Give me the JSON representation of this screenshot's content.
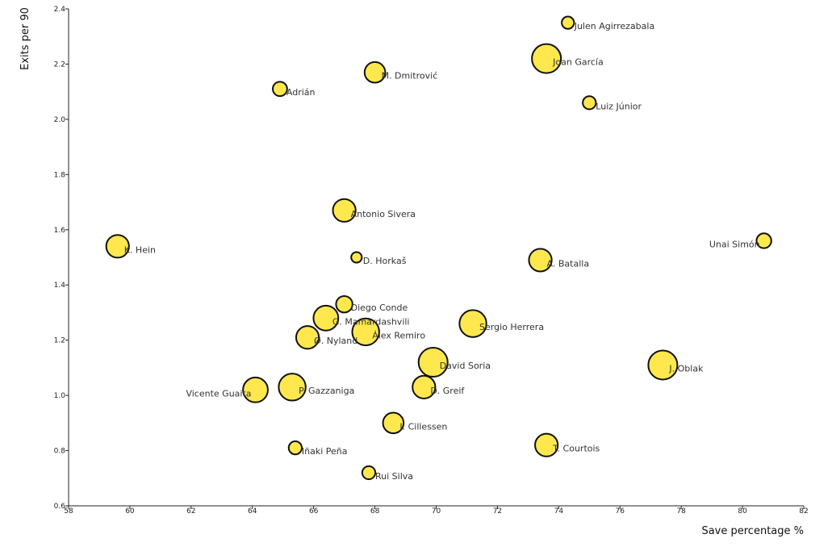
{
  "chart_data": {
    "type": "scatter",
    "xlabel": "Save percentage %",
    "ylabel": "Exits per 90",
    "xlim": [
      58,
      82
    ],
    "ylim": [
      0.6,
      2.4
    ],
    "xticks": [
      58,
      60,
      62,
      64,
      66,
      68,
      70,
      72,
      74,
      76,
      78,
      80,
      82
    ],
    "yticks": [
      0.6,
      0.8,
      1.0,
      1.2,
      1.4,
      1.6,
      1.8,
      2.0,
      2.2,
      2.4
    ],
    "x_tick_labels": [
      "58",
      "60",
      "62",
      "64",
      "66",
      "68",
      "70",
      "72",
      "74",
      "76",
      "78",
      "80",
      "82"
    ],
    "y_tick_labels": [
      "0.6",
      "0.8",
      "1.0",
      "1.2",
      "1.4",
      "1.6",
      "1.8",
      "2.0",
      "2.2",
      "2.4"
    ],
    "grid": false,
    "bubble_color": "#ffe84d",
    "bubble_stroke": "#111111",
    "points": [
      {
        "name": "Julen Agirrezabala",
        "x": 74.3,
        "y": 2.35,
        "size": 1
      },
      {
        "name": "Joan García",
        "x": 73.6,
        "y": 2.22,
        "size": 5
      },
      {
        "name": "M. Dmitrović",
        "x": 68.0,
        "y": 2.17,
        "size": 3
      },
      {
        "name": "Adrián",
        "x": 64.9,
        "y": 2.11,
        "size": 1.5
      },
      {
        "name": "Luiz Júnior",
        "x": 75.0,
        "y": 2.06,
        "size": 1.2
      },
      {
        "name": "Antonio Sivera",
        "x": 67.0,
        "y": 1.67,
        "size": 3.5
      },
      {
        "name": "K. Hein",
        "x": 59.6,
        "y": 1.54,
        "size": 3.5
      },
      {
        "name": "Unai Simón",
        "x": 80.7,
        "y": 1.56,
        "size": 1.6
      },
      {
        "name": "D. Horkaš",
        "x": 67.4,
        "y": 1.5,
        "size": 0.6
      },
      {
        "name": "A. Batalla",
        "x": 73.4,
        "y": 1.49,
        "size": 3.5
      },
      {
        "name": "Diego Conde",
        "x": 67.0,
        "y": 1.33,
        "size": 2
      },
      {
        "name": "G. Mamardashvili",
        "x": 66.4,
        "y": 1.28,
        "size": 4
      },
      {
        "name": "Sergio Herrera",
        "x": 71.2,
        "y": 1.26,
        "size": 4.5
      },
      {
        "name": "Álex Remiro",
        "x": 67.7,
        "y": 1.23,
        "size": 4.5
      },
      {
        "name": "Ø. Nyland",
        "x": 65.8,
        "y": 1.21,
        "size": 3.5
      },
      {
        "name": "David Soria",
        "x": 69.9,
        "y": 1.12,
        "size": 5
      },
      {
        "name": "J. Oblak",
        "x": 77.4,
        "y": 1.11,
        "size": 5
      },
      {
        "name": "Vicente Guaita",
        "x": 64.1,
        "y": 1.02,
        "size": 4
      },
      {
        "name": "P. Gazzaniga",
        "x": 65.3,
        "y": 1.03,
        "size": 4.5
      },
      {
        "name": "D. Greif",
        "x": 69.6,
        "y": 1.03,
        "size": 3.5
      },
      {
        "name": "J. Cillessen",
        "x": 68.6,
        "y": 0.9,
        "size": 3
      },
      {
        "name": "T. Courtois",
        "x": 73.6,
        "y": 0.82,
        "size": 3.5
      },
      {
        "name": "Iñaki Peña",
        "x": 65.4,
        "y": 0.81,
        "size": 1.2
      },
      {
        "name": "Rui Silva",
        "x": 67.8,
        "y": 0.72,
        "size": 1.2
      }
    ]
  }
}
